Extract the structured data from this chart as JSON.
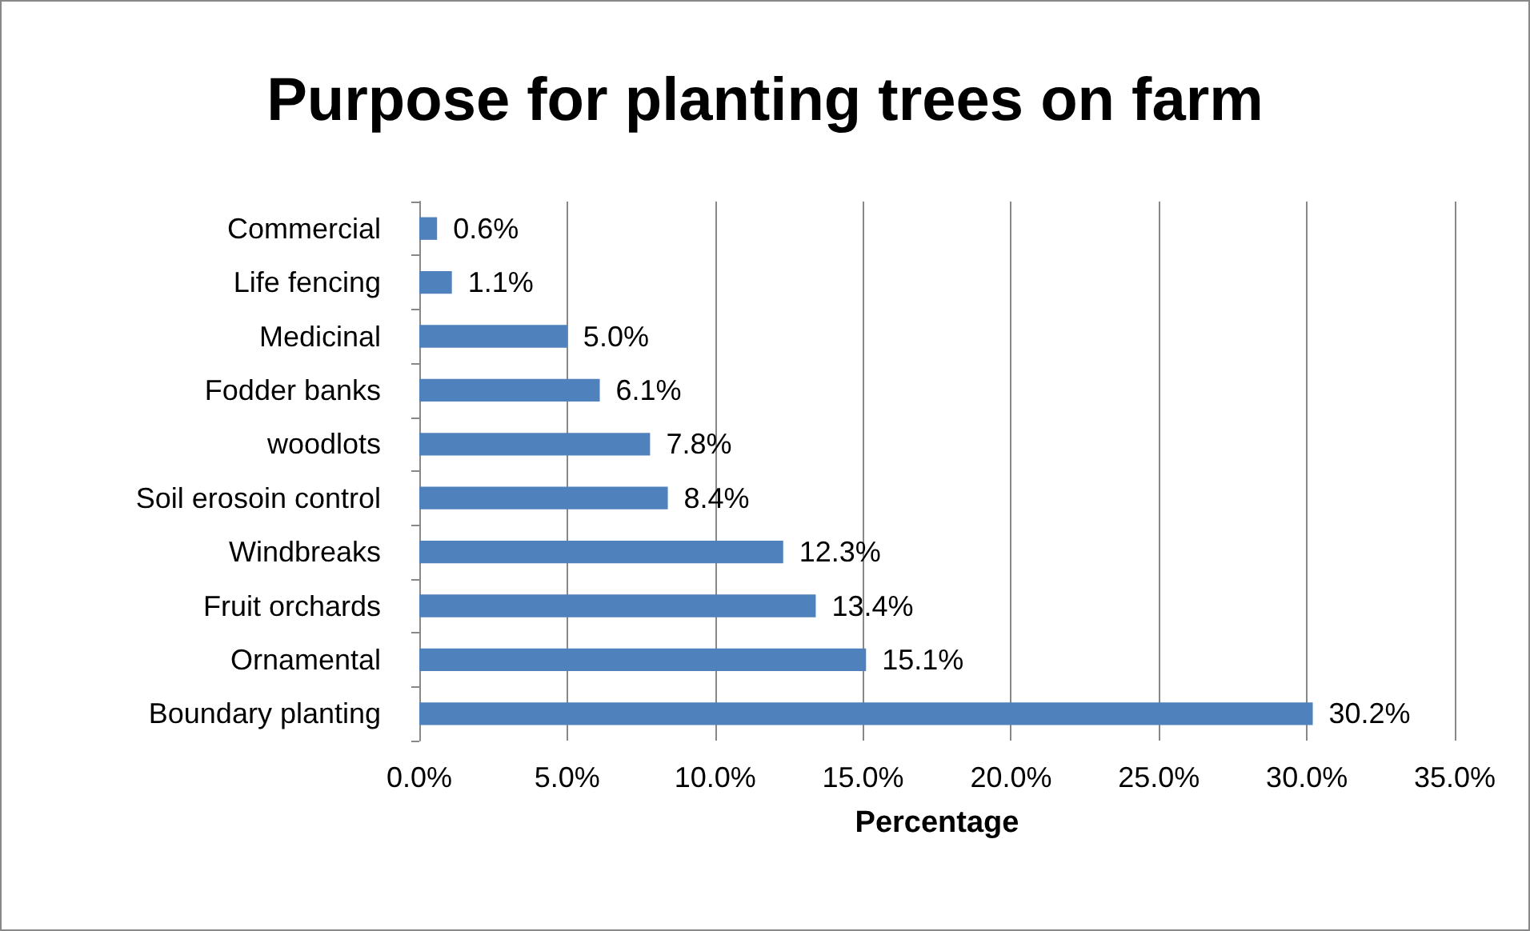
{
  "chart_data": {
    "type": "bar",
    "orientation": "horizontal",
    "title": "Purpose for planting trees on farm",
    "xlabel": "Percentage",
    "categories": [
      "Commercial",
      "Life fencing",
      "Medicinal",
      "Fodder banks",
      "woodlots",
      "Soil erosoin control",
      "Windbreaks",
      "Fruit orchards",
      "Ornamental",
      "Boundary planting"
    ],
    "values": [
      0.6,
      1.1,
      5.0,
      6.1,
      7.8,
      8.4,
      12.3,
      13.4,
      15.1,
      30.2
    ],
    "value_labels": [
      "0.6%",
      "1.1%",
      "5.0%",
      "6.1%",
      "7.8%",
      "8.4%",
      "12.3%",
      "13.4%",
      "15.1%",
      "30.2%"
    ],
    "color": "#4f81bd",
    "xlim": [
      0,
      35
    ],
    "xticks": [
      {
        "value": 0,
        "label": "0.0%"
      },
      {
        "value": 5,
        "label": "5.0%"
      },
      {
        "value": 10,
        "label": "10.0%"
      },
      {
        "value": 15,
        "label": "15.0%"
      },
      {
        "value": 20,
        "label": "20.0%"
      },
      {
        "value": 25,
        "label": "25.0%"
      },
      {
        "value": 30,
        "label": "30.0%"
      },
      {
        "value": 35,
        "label": "35.0%"
      }
    ],
    "grid": "x"
  }
}
